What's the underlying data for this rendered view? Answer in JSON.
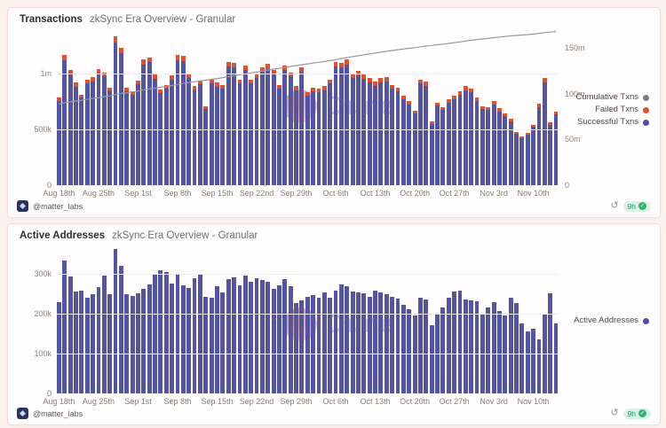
{
  "page": {
    "background": "#fbf1ef"
  },
  "watermark": {
    "text": "Dune"
  },
  "cards": [
    {
      "title": "Transactions",
      "subtitle": "zkSync Era Overview - Granular",
      "author": "@matter_labs",
      "refresh_icon": "↺",
      "badge": {
        "age": "9h",
        "check": "✓"
      }
    },
    {
      "title": "Active Addresses",
      "subtitle": "zkSync Era Overview - Granular",
      "author": "@matter_labs",
      "refresh_icon": "↺",
      "badge": {
        "age": "9h",
        "check": "✓"
      }
    }
  ],
  "chart_data": [
    {
      "type": "bar",
      "title": "Transactions",
      "subtitle": "zkSync Era Overview - Granular",
      "x_start": "Aug 18",
      "x_end": "Nov 14",
      "x_tick_every": 7,
      "x_tick_labels": [
        "Aug 18th",
        "Aug 25th",
        "Sep 1st",
        "Sep 8th",
        "Sep 15th",
        "Sep 22nd",
        "Sep 29th",
        "Oct 6th",
        "Oct 13th",
        "Oct 20th",
        "Oct 27th",
        "Nov 3rd",
        "Nov 10th"
      ],
      "grid": true,
      "legend_position": "right",
      "ylim_left": [
        0,
        1.33
      ],
      "left_ticks": [
        {
          "v": 0,
          "label": "0"
        },
        {
          "v": 0.5,
          "label": "500k"
        },
        {
          "v": 1,
          "label": "1m"
        }
      ],
      "ylim_right": [
        0,
        162.5
      ],
      "right_ticks": [
        {
          "v": 0,
          "label": "0"
        },
        {
          "v": 50,
          "label": "50m"
        },
        {
          "v": 100,
          "label": "100m"
        },
        {
          "v": 150,
          "label": "150m"
        }
      ],
      "series": [
        {
          "name": "Successful Txns",
          "color": "#5554a0",
          "unit": "millions of txns per day",
          "values": [
            0.75,
            1.12,
            0.99,
            0.88,
            0.78,
            0.91,
            0.93,
            1.0,
            0.97,
            0.84,
            1.32,
            1.18,
            0.84,
            0.81,
            0.9,
            1.08,
            1.1,
            0.95,
            0.82,
            0.86,
            0.94,
            1.12,
            1.11,
            0.96,
            0.85,
            0.9,
            0.68,
            0.91,
            0.88,
            0.86,
            1.06,
            1.05,
            0.91,
            1.03,
            0.91,
            0.96,
            1.01,
            1.04,
            0.99,
            0.86,
            1.03,
            0.97,
            0.85,
            1.01,
            0.8,
            0.84,
            0.83,
            0.85,
            0.91,
            1.06,
            1.05,
            1.08,
            0.96,
            0.98,
            0.95,
            0.92,
            0.89,
            0.92,
            0.93,
            0.86,
            0.84,
            0.77,
            0.72,
            0.64,
            0.91,
            0.89,
            0.55,
            0.71,
            0.67,
            0.74,
            0.77,
            0.81,
            0.85,
            0.83,
            0.75,
            0.68,
            0.67,
            0.72,
            0.66,
            0.62,
            0.57,
            0.46,
            0.42,
            0.45,
            0.52,
            0.7,
            0.92,
            0.54,
            0.63
          ]
        },
        {
          "name": "Failed Txns",
          "color": "#e2512e",
          "unit": "millions of txns per day",
          "values": [
            0.03,
            0.045,
            0.04,
            0.035,
            0.031,
            0.036,
            0.037,
            0.04,
            0.039,
            0.034,
            0.053,
            0.047,
            0.034,
            0.032,
            0.036,
            0.043,
            0.044,
            0.038,
            0.033,
            0.034,
            0.038,
            0.045,
            0.044,
            0.038,
            0.034,
            0.036,
            0.027,
            0.036,
            0.035,
            0.034,
            0.042,
            0.042,
            0.036,
            0.041,
            0.036,
            0.038,
            0.04,
            0.042,
            0.04,
            0.034,
            0.041,
            0.039,
            0.034,
            0.04,
            0.032,
            0.034,
            0.033,
            0.034,
            0.036,
            0.042,
            0.042,
            0.043,
            0.038,
            0.039,
            0.038,
            0.037,
            0.036,
            0.037,
            0.037,
            0.034,
            0.034,
            0.031,
            0.029,
            0.026,
            0.036,
            0.036,
            0.022,
            0.028,
            0.027,
            0.03,
            0.031,
            0.032,
            0.034,
            0.033,
            0.03,
            0.027,
            0.027,
            0.029,
            0.026,
            0.025,
            0.023,
            0.018,
            0.017,
            0.018,
            0.021,
            0.028,
            0.037,
            0.022,
            0.025
          ]
        },
        {
          "name": "Cumulative Txns",
          "color": "#999999",
          "axis": "right",
          "unit": "millions of txns",
          "derived": "start_plus_running_total_of_daily_txns",
          "start": 88,
          "end_approx": 167
        }
      ],
      "legend": [
        {
          "name": "Cumulative Txns",
          "color": "#7d7d7d"
        },
        {
          "name": "Failed Txns",
          "color": "#e2512e"
        },
        {
          "name": "Successful Txns",
          "color": "#4c4ba6"
        }
      ]
    },
    {
      "type": "bar",
      "title": "Active Addresses",
      "subtitle": "zkSync Era Overview - Granular",
      "x_start": "Aug 18",
      "x_end": "Nov 14",
      "x_tick_every": 7,
      "x_tick_labels": [
        "Aug 18th",
        "Aug 25th",
        "Sep 1st",
        "Sep 8th",
        "Sep 15th",
        "Sep 22nd",
        "Sep 29th",
        "Oct 6th",
        "Oct 13th",
        "Oct 20th",
        "Oct 27th",
        "Nov 3rd",
        "Nov 10th"
      ],
      "grid": true,
      "legend_position": "right",
      "ylim_left": [
        0,
        392
      ],
      "left_ticks": [
        {
          "v": 0,
          "label": "0"
        },
        {
          "v": 100,
          "label": "100k"
        },
        {
          "v": 200,
          "label": "200k"
        },
        {
          "v": 300,
          "label": "300k"
        }
      ],
      "series": [
        {
          "name": "Active Addresses",
          "color": "#5554a0",
          "unit": "thousands of addresses per day",
          "values": [
            228,
            333,
            292,
            254,
            256,
            240,
            247,
            265,
            295,
            247,
            362,
            320,
            247,
            244,
            250,
            262,
            272,
            300,
            307,
            303,
            275,
            298,
            270,
            264,
            287,
            300,
            242,
            240,
            268,
            253,
            286,
            290,
            270,
            295,
            280,
            287,
            283,
            280,
            262,
            270,
            285,
            268,
            225,
            232,
            242,
            245,
            240,
            252,
            240,
            258,
            272,
            268,
            255,
            253,
            250,
            242,
            256,
            252,
            248,
            242,
            238,
            222,
            210,
            195,
            240,
            235,
            170,
            200,
            215,
            240,
            255,
            258,
            235,
            232,
            230,
            197,
            215,
            228,
            205,
            195,
            240,
            225,
            175,
            155,
            162,
            135,
            200,
            250,
            175
          ]
        }
      ],
      "legend": [
        {
          "name": "Active Addresses",
          "color": "#4c4ba6"
        }
      ]
    }
  ]
}
